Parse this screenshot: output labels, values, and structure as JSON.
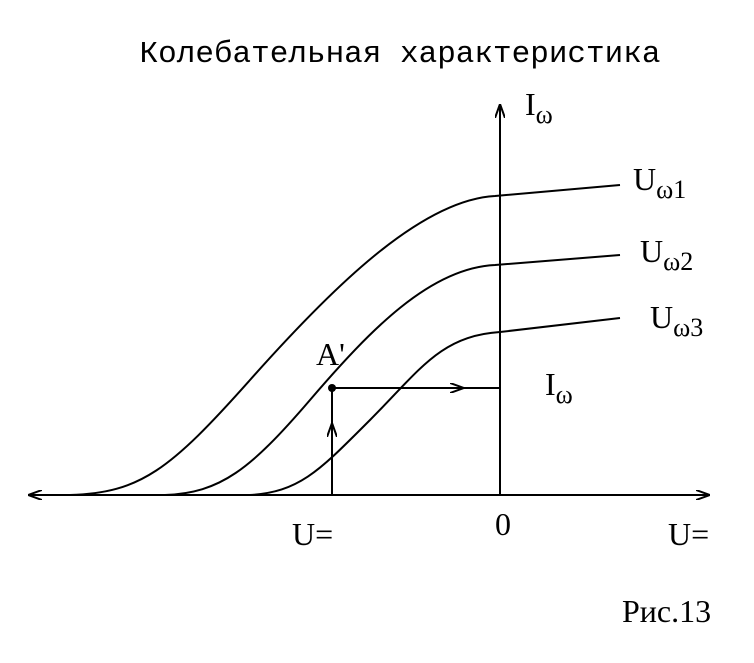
{
  "header": {
    "title": "Колебательная характеристика"
  },
  "axes": {
    "y_label": {
      "main": "I",
      "sub": "ω"
    },
    "x_label": "U=",
    "origin": "0"
  },
  "curves": [
    {
      "main": "U",
      "sub": "ω1"
    },
    {
      "main": "U",
      "sub": "ω2"
    },
    {
      "main": "U",
      "sub": "ω3"
    }
  ],
  "point": "A'",
  "projection": {
    "x_label": "U=",
    "y_label": {
      "main": "I",
      "sub": "ω"
    }
  },
  "caption": "Рис.13"
}
